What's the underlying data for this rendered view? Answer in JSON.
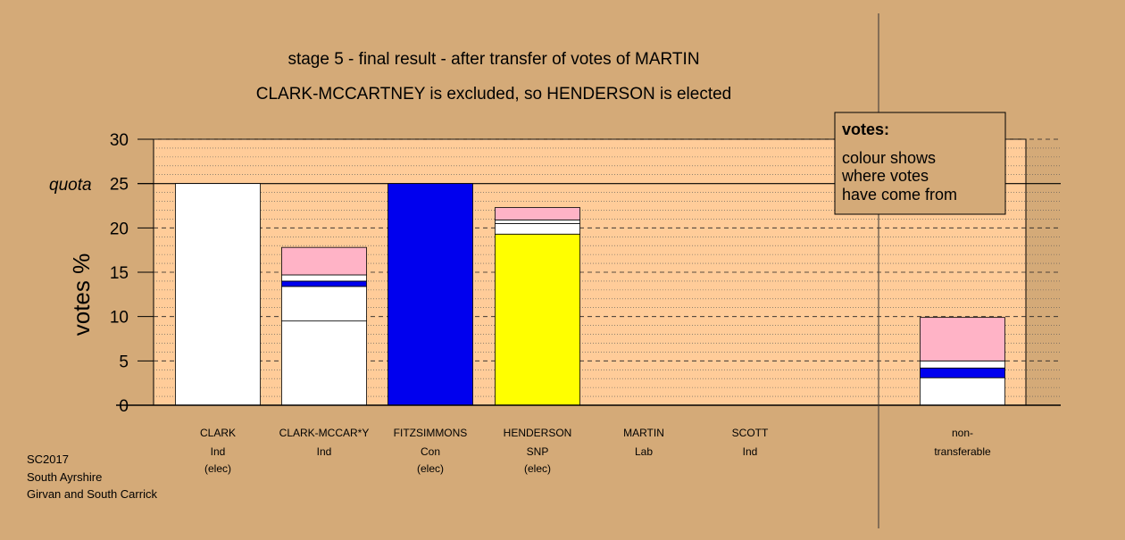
{
  "colors": {
    "background": "#d4aa78",
    "plot_area": "#ffcc99",
    "white_segment": "#ffffff",
    "blue_segment": "#0000ee",
    "yellow_segment": "#ffff00",
    "pink_segment": "#ffb3c6"
  },
  "chart_data": {
    "type": "bar",
    "stacked": true,
    "title": "stage 5 - final result - after transfer of votes of MARTIN",
    "subtitle": "CLARK-MCCARTNEY is excluded, so HENDERSON is elected",
    "ylabel": "votes %",
    "ylim": [
      0,
      30
    ],
    "yticks": [
      "0",
      "5",
      "10",
      "15",
      "20",
      "25",
      "30"
    ],
    "quota": {
      "value": 25,
      "label": "quota"
    },
    "grid": true,
    "legend": {
      "placement": "top-right",
      "heading": "votes:",
      "lines": [
        "colour shows",
        "where votes",
        "have come from"
      ]
    },
    "categories": [
      {
        "name": "CLARK",
        "party": "Ind",
        "note": "(elec)",
        "segments": [
          {
            "value": 25.0,
            "color": "#ffffff"
          }
        ]
      },
      {
        "name": "CLARK-MCCAR*Y",
        "party": "Ind",
        "note": "",
        "segments": [
          {
            "value": 9.5,
            "color": "#ffffff"
          },
          {
            "value": 3.9,
            "color": "#ffffff"
          },
          {
            "value": 0.6,
            "color": "#0000ee"
          },
          {
            "value": 0.7,
            "color": "#ffffff"
          },
          {
            "value": 3.1,
            "color": "#ffb3c6"
          }
        ]
      },
      {
        "name": "FITZSIMMONS",
        "party": "Con",
        "note": "(elec)",
        "segments": [
          {
            "value": 25.0,
            "color": "#0000ee"
          }
        ]
      },
      {
        "name": "HENDERSON",
        "party": "SNP",
        "note": "(elec)",
        "segments": [
          {
            "value": 19.3,
            "color": "#ffff00"
          },
          {
            "value": 1.2,
            "color": "#ffffff"
          },
          {
            "value": 0.4,
            "color": "#ffffff"
          },
          {
            "value": 1.4,
            "color": "#ffb3c6"
          }
        ]
      },
      {
        "name": "MARTIN",
        "party": "Lab",
        "note": "",
        "segments": []
      },
      {
        "name": "SCOTT",
        "party": "Ind",
        "note": "",
        "segments": []
      }
    ],
    "nontransferable": {
      "label_line1": "non-",
      "label_line2": "transferable",
      "segments": [
        {
          "value": 3.1,
          "color": "#ffffff"
        },
        {
          "value": 1.1,
          "color": "#0000ee"
        },
        {
          "value": 0.8,
          "color": "#ffffff"
        },
        {
          "value": 4.9,
          "color": "#ffb3c6"
        }
      ]
    }
  },
  "footer": {
    "line1": "SC2017",
    "line2": "South Ayrshire",
    "line3": "Girvan and South Carrick"
  }
}
